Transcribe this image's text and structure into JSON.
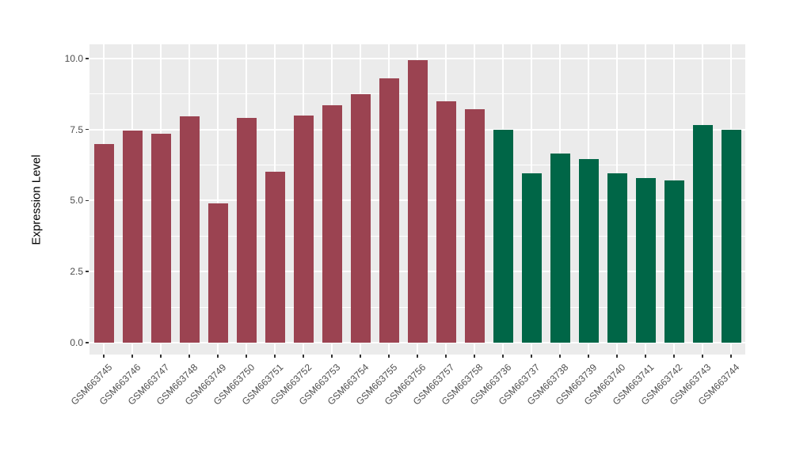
{
  "figure": {
    "background": "#FFFFFF",
    "panel_background": "#EBEBEB",
    "grid_color": "#FFFFFF",
    "tick_mark_color": "#333333",
    "tick_label_color": "#4D4D4D",
    "axis_title_color": "#000000"
  },
  "chart_data": {
    "type": "bar",
    "title": "",
    "xlabel": "",
    "ylabel": "Expression Level",
    "ylim": [
      0,
      10.5
    ],
    "yticks": [
      0.0,
      2.5,
      5.0,
      7.5,
      10.0
    ],
    "ytick_labels": [
      "0.0",
      "2.5",
      "5.0",
      "7.5",
      "10.0"
    ],
    "minor_yticks": [
      1.25,
      3.75,
      6.25,
      8.75
    ],
    "grid": "horizontal major+minor, vertical major at each category",
    "legend_position": "none",
    "categories": [
      "GSM663745",
      "GSM663746",
      "GSM663747",
      "GSM663748",
      "GSM663749",
      "GSM663750",
      "GSM663751",
      "GSM663752",
      "GSM663753",
      "GSM663754",
      "GSM663755",
      "GSM663756",
      "GSM663757",
      "GSM663758",
      "GSM663736",
      "GSM663737",
      "GSM663738",
      "GSM663739",
      "GSM663740",
      "GSM663741",
      "GSM663742",
      "GSM663743",
      "GSM663744"
    ],
    "values": [
      7.0,
      7.45,
      7.35,
      7.95,
      4.9,
      7.9,
      6.0,
      8.0,
      8.35,
      8.75,
      9.3,
      9.95,
      8.5,
      8.2,
      7.5,
      5.95,
      6.65,
      6.45,
      5.95,
      5.8,
      5.7,
      7.65,
      7.5
    ],
    "groups": [
      "a",
      "a",
      "a",
      "a",
      "a",
      "a",
      "a",
      "a",
      "a",
      "a",
      "a",
      "a",
      "a",
      "a",
      "b",
      "b",
      "b",
      "b",
      "b",
      "b",
      "b",
      "b",
      "b"
    ],
    "group_colors": {
      "a": "#9B4351",
      "b": "#006647"
    }
  }
}
